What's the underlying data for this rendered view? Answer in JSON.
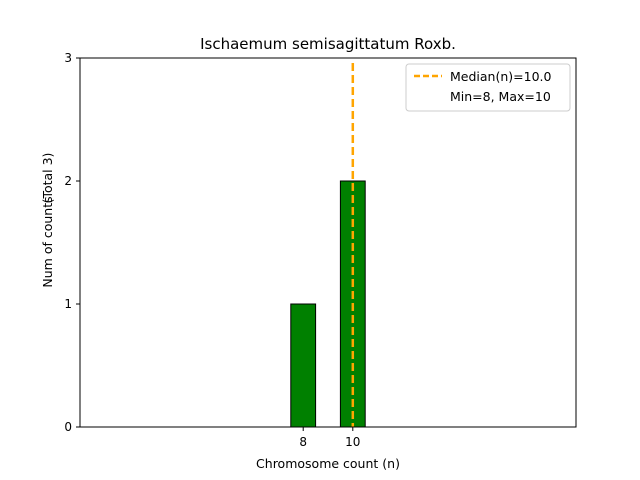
{
  "chart_data": {
    "type": "bar",
    "title": "Ischaemum semisagittatum Roxb.",
    "xlabel": "Chromosome count (n)",
    "ylabel": "Num of counts",
    "ylabel_suffix": "(Total 3)",
    "x": [
      8,
      10
    ],
    "values": [
      1,
      2
    ],
    "bar_color": "#008000",
    "bar_edge_color": "#000000",
    "xlim": [
      -1,
      19
    ],
    "ylim": [
      0,
      3
    ],
    "yticks": [
      0,
      1,
      2,
      3
    ],
    "xticks": [
      8,
      10
    ],
    "median_line": {
      "x": 10.0,
      "color": "#FFA500",
      "style": "dashed"
    },
    "legend": {
      "position": "top-right",
      "entries": [
        "Median(n)=10.0",
        "Min=8, Max=10"
      ]
    },
    "grid": false
  }
}
